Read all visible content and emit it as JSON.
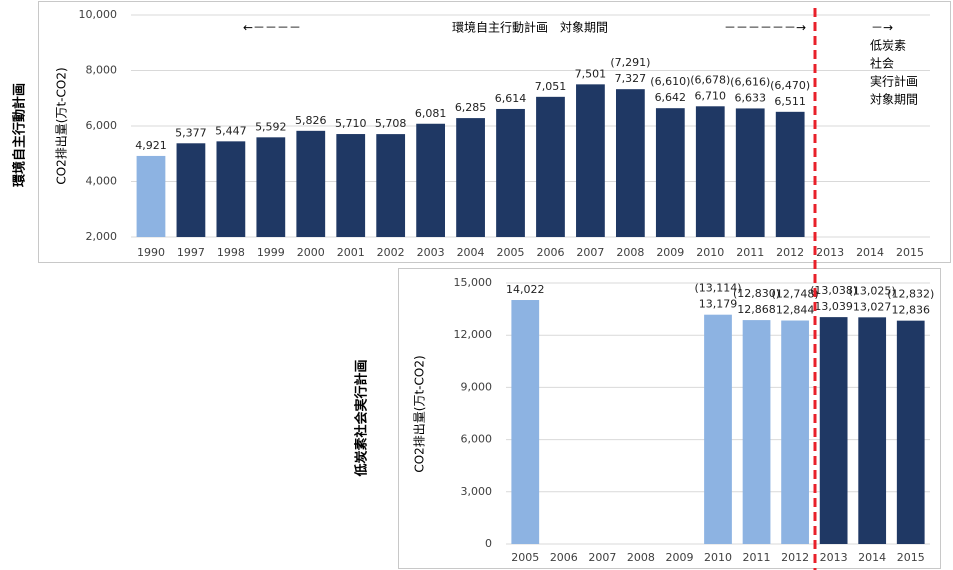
{
  "chart_data": [
    {
      "type": "bar",
      "side_label": "環境自主行動計画",
      "ylabel": "CO2排出量(万t-CO2)",
      "annotations": [
        "←－－－－",
        "環境自主行動計画　対象期間",
        "－－－－－－→",
        "－→",
        "低炭素",
        "社会",
        "実行計画",
        "対象期間"
      ],
      "categories": [
        "1990",
        "1997",
        "1998",
        "1999",
        "2000",
        "2001",
        "2002",
        "2003",
        "2004",
        "2005",
        "2006",
        "2007",
        "2008",
        "2009",
        "2010",
        "2011",
        "2012",
        "2013",
        "2014",
        "2015"
      ],
      "values": [
        4921,
        5377,
        5447,
        5592,
        5826,
        5710,
        5708,
        6081,
        6285,
        6614,
        7051,
        7501,
        7327,
        6642,
        6710,
        6633,
        6511,
        null,
        null,
        null
      ],
      "value_labels": [
        "4,921",
        "5,377",
        "5,447",
        "5,592",
        "5,826",
        "5,710",
        "5,708",
        "6,081",
        "6,285",
        "6,614",
        "7,051",
        "7,501",
        "7,327",
        "6,642",
        "6,710",
        "6,633",
        "6,511",
        null,
        null,
        null
      ],
      "secondary_values": [
        null,
        null,
        null,
        null,
        null,
        null,
        null,
        null,
        null,
        null,
        null,
        null,
        7291,
        6610,
        6678,
        6616,
        6470,
        null,
        null,
        null
      ],
      "secondary_value_labels": [
        null,
        null,
        null,
        null,
        null,
        null,
        null,
        null,
        null,
        null,
        null,
        null,
        "(7,291)",
        "(6,610)",
        "(6,678)",
        "(6,616)",
        "(6,470)",
        null,
        null,
        null
      ],
      "colors": [
        "#8db3e2",
        "#1f3864",
        "#1f3864",
        "#1f3864",
        "#1f3864",
        "#1f3864",
        "#1f3864",
        "#1f3864",
        "#1f3864",
        "#1f3864",
        "#1f3864",
        "#1f3864",
        "#1f3864",
        "#1f3864",
        "#1f3864",
        "#1f3864",
        "#1f3864",
        "#1f3864",
        "#1f3864",
        "#1f3864"
      ],
      "ylim": [
        2000,
        10000
      ],
      "yticks": [
        {
          "value": 2000,
          "label": "2,000"
        },
        {
          "value": 4000,
          "label": "4,000"
        },
        {
          "value": 6000,
          "label": "6,000"
        },
        {
          "value": 8000,
          "label": "8,000"
        },
        {
          "value": 10000,
          "label": "10,000"
        }
      ],
      "grid": true
    },
    {
      "type": "bar",
      "side_label": "低炭素社会実行計画",
      "ylabel": "CO2排出量(万t-CO2)",
      "categories": [
        "2005",
        "2006",
        "2007",
        "2008",
        "2009",
        "2010",
        "2011",
        "2012",
        "2013",
        "2014",
        "2015"
      ],
      "values": [
        14022,
        null,
        null,
        null,
        null,
        13179,
        12868,
        12844,
        13039,
        13027,
        12836
      ],
      "value_labels": [
        "14,022",
        null,
        null,
        null,
        null,
        "13,179",
        "12,868",
        "12,844",
        "13,039",
        "13,027",
        "12,836"
      ],
      "secondary_values": [
        null,
        null,
        null,
        null,
        null,
        13114,
        12830,
        12748,
        13038,
        13025,
        12832
      ],
      "secondary_value_labels": [
        null,
        null,
        null,
        null,
        null,
        "(13,114)",
        "(12,830)",
        "(12,748)",
        "(13,038)",
        "(13,025)",
        "(12,832)"
      ],
      "colors": [
        "#8db3e2",
        "#8db3e2",
        "#8db3e2",
        "#8db3e2",
        "#8db3e2",
        "#8db3e2",
        "#8db3e2",
        "#8db3e2",
        "#1f3864",
        "#1f3864",
        "#1f3864"
      ],
      "ylim": [
        0,
        15000
      ],
      "yticks": [
        0,
        {
          "value": 3000,
          "label": "3,000"
        },
        {
          "value": 6000,
          "label": "6,000"
        },
        {
          "value": 9000,
          "label": "9,000"
        },
        {
          "value": 12000,
          "label": "12,000"
        },
        {
          "value": 15000,
          "label": "15,000"
        }
      ],
      "grid": true
    }
  ]
}
